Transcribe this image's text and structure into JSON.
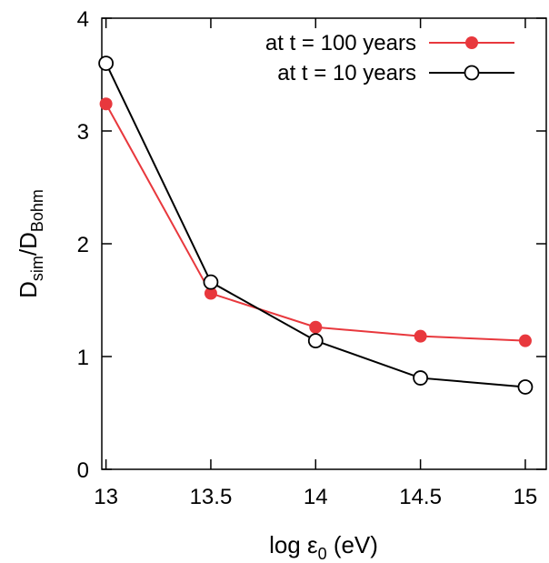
{
  "chart_data": {
    "type": "line",
    "xlabel": {
      "prefix": "log ε",
      "sub": "0",
      "suffix": " (eV)"
    },
    "ylabel": {
      "d1": "D",
      "sub1": "sim",
      "slash": "/D",
      "sub2": "Bohm"
    },
    "xlim": [
      12.98,
      15.1
    ],
    "ylim": [
      0,
      4
    ],
    "x_ticks": [
      {
        "value": 13,
        "label": "13"
      },
      {
        "value": 13.5,
        "label": "13.5"
      },
      {
        "value": 14,
        "label": "14"
      },
      {
        "value": 14.5,
        "label": "14.5"
      },
      {
        "value": 15,
        "label": "15"
      }
    ],
    "y_ticks": [
      {
        "value": 0,
        "label": "0"
      },
      {
        "value": 1,
        "label": "1"
      },
      {
        "value": 2,
        "label": "2"
      },
      {
        "value": 3,
        "label": "3"
      },
      {
        "value": 4,
        "label": "4"
      }
    ],
    "grid": false,
    "legend_position": "top-right",
    "x": [
      13,
      13.5,
      14,
      14.5,
      15
    ],
    "series": [
      {
        "name": "at t = 100 years",
        "values": [
          3.24,
          1.56,
          1.26,
          1.18,
          1.14
        ],
        "color": "#e8383d",
        "marker": "filled-circle"
      },
      {
        "name": "at t = 10 years",
        "values": [
          3.6,
          1.66,
          1.14,
          0.81,
          0.73
        ],
        "color": "#000000",
        "marker": "open-circle"
      }
    ]
  }
}
